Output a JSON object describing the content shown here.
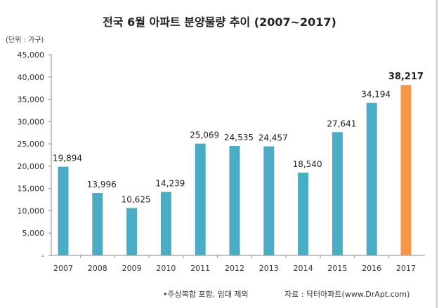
{
  "chart_data": {
    "type": "bar",
    "title": "전국 6월 아파트 분양물량 추이 (2007~2017)",
    "unit_label": "(단위 : 가구)",
    "categories": [
      "2007",
      "2008",
      "2009",
      "2010",
      "2011",
      "2012",
      "2013",
      "2014",
      "2015",
      "2016",
      "2017"
    ],
    "values": [
      19894,
      13996,
      10625,
      14239,
      25069,
      24535,
      24457,
      18540,
      27641,
      34194,
      38217
    ],
    "data_labels": [
      "19,894",
      "13,996",
      "10,625",
      "14,239",
      "25,069",
      "24,535",
      "24,457",
      "18,540",
      "27,641",
      "34,194",
      "38,217"
    ],
    "ylim": [
      0,
      45000
    ],
    "yticks": [
      0,
      5000,
      10000,
      15000,
      20000,
      25000,
      30000,
      35000,
      40000,
      45000
    ],
    "ytick_labels": [
      "-",
      "5,000",
      "10,000",
      "15,000",
      "20,000",
      "25,000",
      "30,000",
      "35,000",
      "40,000",
      "45,000"
    ],
    "grid": false,
    "colors": {
      "default": "#4bacc6",
      "highlight": "#f79646"
    },
    "highlight_index": 10
  },
  "footnote": "•주상복합 포함, 임대 제외",
  "source": "자료 : 닥터아파트(www.DrApt.com)"
}
